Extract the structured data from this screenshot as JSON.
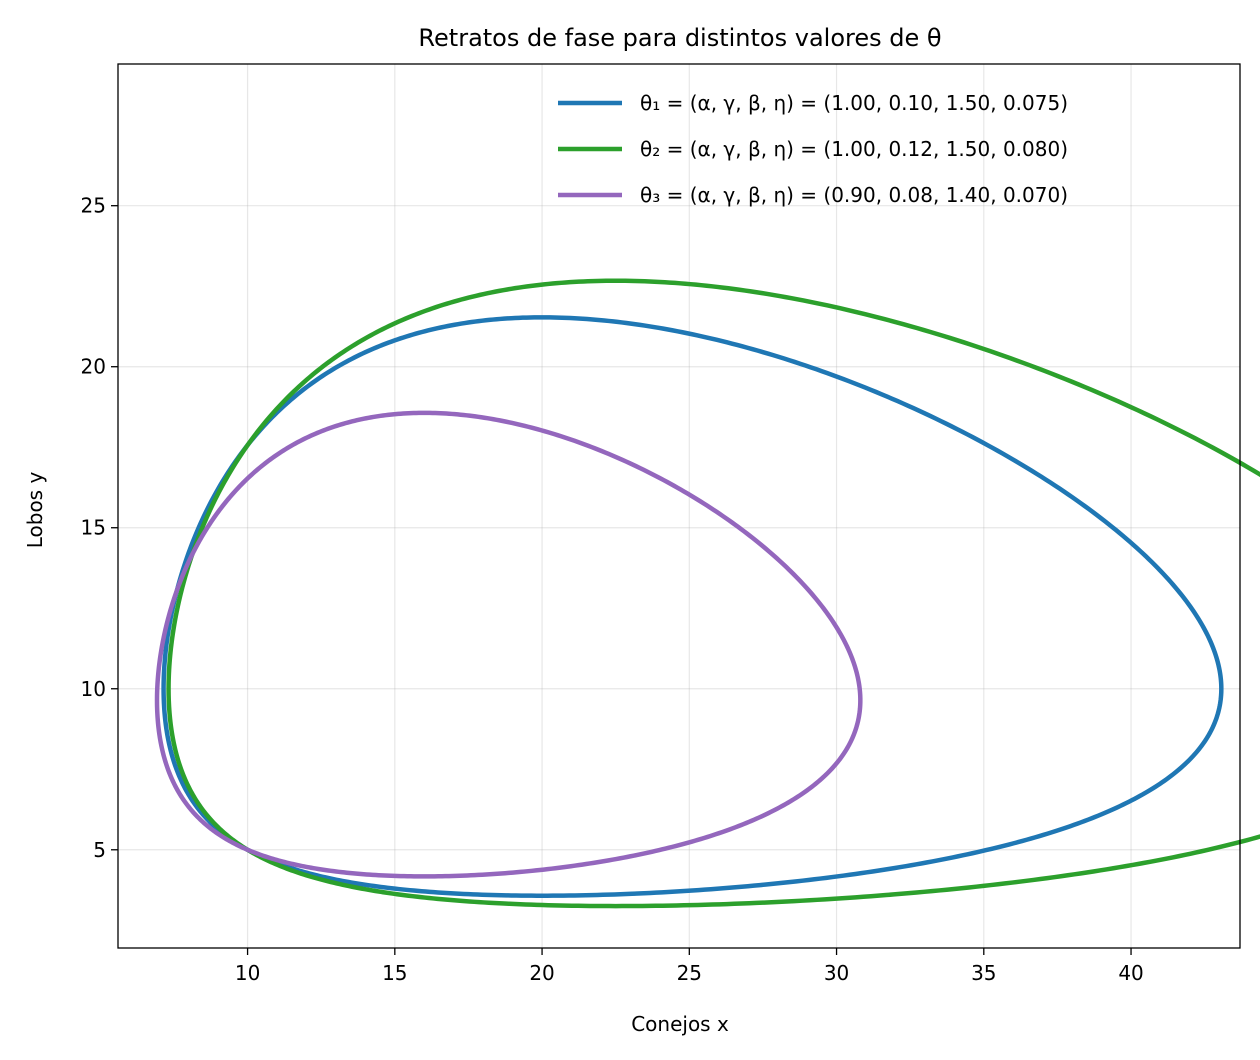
{
  "chart_data": {
    "type": "line",
    "title": "Retratos de fase para distintos valores de θ",
    "xlabel": "Conejos x",
    "ylabel": "Lobos y",
    "xlim": [
      5.6,
      43.7
    ],
    "ylim": [
      1.95,
      29.4
    ],
    "xticks": [
      10,
      15,
      20,
      25,
      30,
      35,
      40
    ],
    "yticks": [
      5,
      10,
      15,
      20,
      25
    ],
    "grid": true,
    "legend_position": "top-right",
    "series": [
      {
        "name": "θ₁ = (α, γ, β, η) = (1.00, 0.10, 1.50, 0.075)",
        "color": "#1f77b4",
        "params": {
          "alpha": 1.0,
          "gamma": 0.1,
          "beta": 1.5,
          "eta": 0.075
        },
        "x0": 10,
        "y0": 5
      },
      {
        "name": "θ₂ = (α, γ, β, η) = (1.00, 0.12, 1.50, 0.080)",
        "color": "#2ca02c",
        "params": {
          "alpha": 1.0,
          "gamma": 0.12,
          "beta": 1.5,
          "eta": 0.08
        },
        "x0": 10,
        "y0": 5
      },
      {
        "name": "θ₃ = (α, γ, β, η) = (0.90, 0.08, 1.40, 0.070)",
        "color": "#9467bd",
        "params": {
          "alpha": 0.9,
          "gamma": 0.08,
          "beta": 1.4,
          "eta": 0.07
        },
        "x0": 10,
        "y0": 5
      }
    ]
  }
}
